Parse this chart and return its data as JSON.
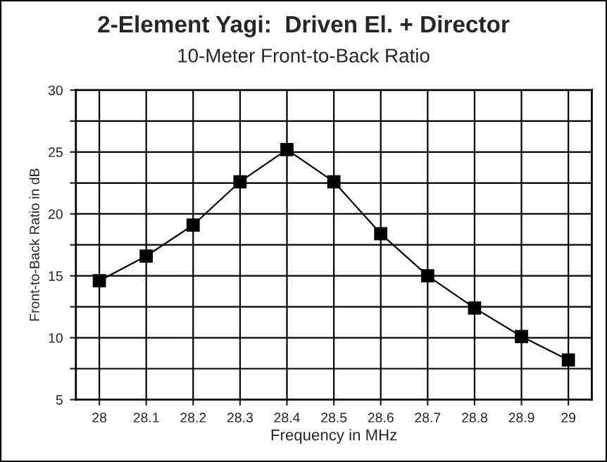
{
  "chart_data": {
    "type": "line",
    "title": "2-Element Yagi:  Driven El. + Director",
    "subtitle": "10-Meter Front-to-Back Ratio",
    "xlabel": "Frequency in MHz",
    "ylabel": "Front-to-Back Ratio in dB",
    "x": [
      28,
      28.1,
      28.2,
      28.3,
      28.4,
      28.5,
      28.6,
      28.7,
      28.8,
      28.9,
      29
    ],
    "series": [
      {
        "color": "#000000",
        "values": [
          14.6,
          16.6,
          19.1,
          22.6,
          25.2,
          22.6,
          18.4,
          15.0,
          12.4,
          10.1,
          8.2
        ]
      }
    ],
    "xlim": [
      27.95,
      29.05
    ],
    "xticks": [
      28,
      28.1,
      28.2,
      28.3,
      28.4,
      28.5,
      28.6,
      28.7,
      28.8,
      28.9,
      29
    ],
    "ylim": [
      5,
      30
    ],
    "yticks": [
      5,
      {
        "value": 7.5,
        "label": null
      },
      10,
      {
        "value": 12.5,
        "label": null
      },
      15,
      {
        "value": 17.5,
        "label": null
      },
      20,
      {
        "value": 22.5,
        "label": null
      },
      25,
      {
        "value": 27.5,
        "label": null
      },
      30
    ],
    "grid": true,
    "marker": "square",
    "line_style": "solid",
    "legend": false
  }
}
